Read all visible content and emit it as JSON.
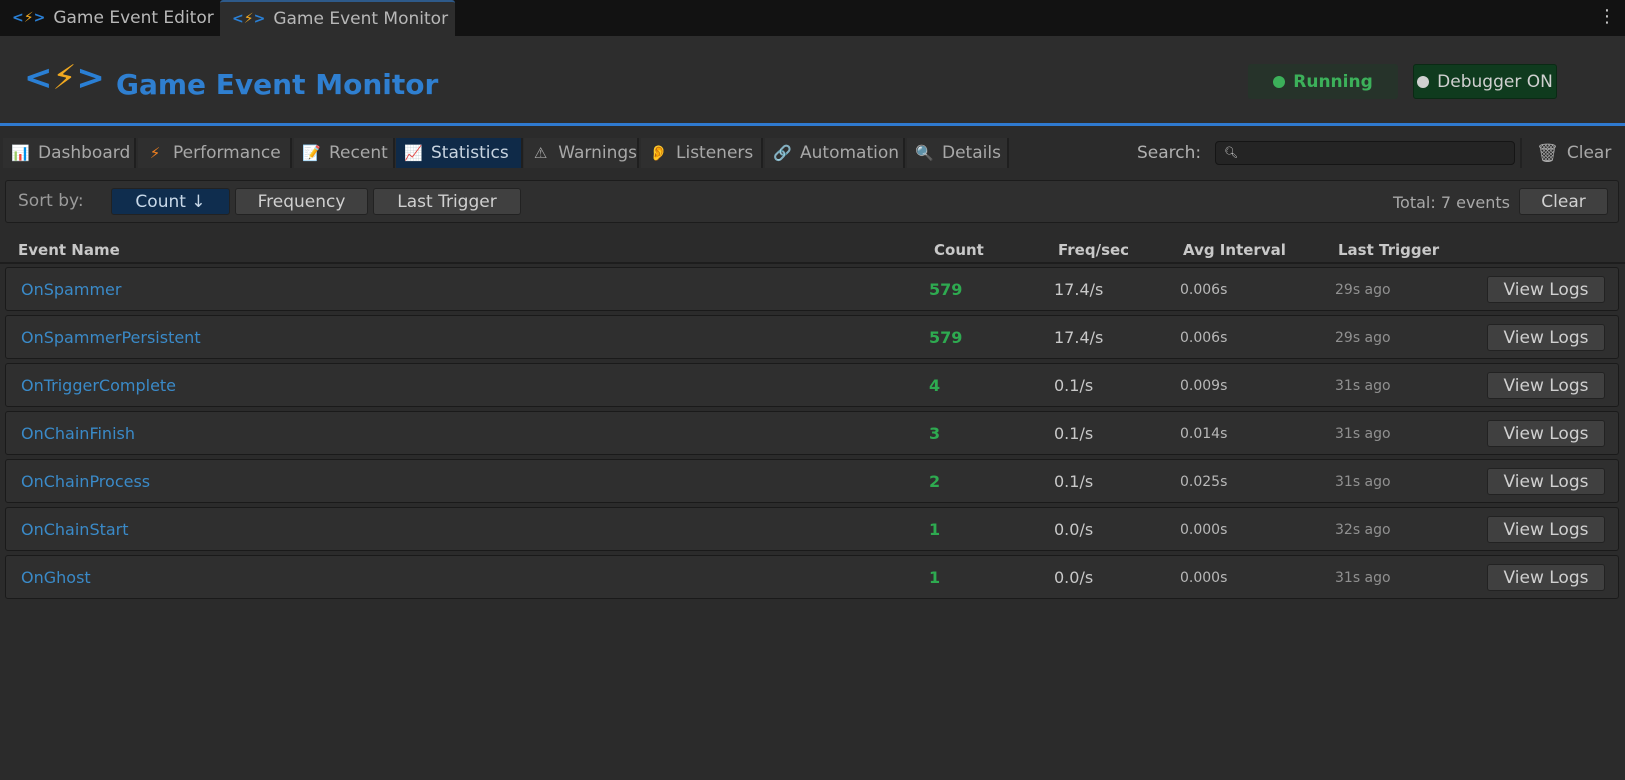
{
  "window_tabs": [
    {
      "label": "Game Event Editor",
      "active": false
    },
    {
      "label": "Game Event Monitor",
      "active": true
    }
  ],
  "header": {
    "title": "Game Event Monitor",
    "status": {
      "label": "Running",
      "color": "#3cb05a"
    },
    "debugger": {
      "label": "Debugger ON"
    }
  },
  "tabs": [
    {
      "label": "Dashboard",
      "icon": "bar-chart-icon"
    },
    {
      "label": "Performance",
      "icon": "lightning-icon"
    },
    {
      "label": "Recent",
      "icon": "memo-icon"
    },
    {
      "label": "Statistics",
      "icon": "chart-increasing-icon",
      "active": true
    },
    {
      "label": "Warnings",
      "icon": "warning-icon"
    },
    {
      "label": "Listeners",
      "icon": "ear-icon"
    },
    {
      "label": "Automation",
      "icon": "link-icon"
    },
    {
      "label": "Details",
      "icon": "magnifier-icon"
    }
  ],
  "search": {
    "label": "Search:",
    "value": ""
  },
  "clear_label": "Clear",
  "sort": {
    "label": "Sort by:",
    "options": [
      "Count ↓",
      "Frequency",
      "Last Trigger"
    ],
    "active": "Count ↓"
  },
  "total": "Total: 7 events",
  "clear_button": "Clear",
  "columns": [
    "Event Name",
    "Count",
    "Freq/sec",
    "Avg Interval",
    "Last Trigger"
  ],
  "rows": [
    {
      "name": "OnSpammer",
      "count": "579",
      "freq": "17.4/s",
      "avg": "0.006s",
      "last": "29s ago",
      "action": "View Logs"
    },
    {
      "name": "OnSpammerPersistent",
      "count": "579",
      "freq": "17.4/s",
      "avg": "0.006s",
      "last": "29s ago",
      "action": "View Logs"
    },
    {
      "name": "OnTriggerComplete",
      "count": "4",
      "freq": "0.1/s",
      "avg": "0.009s",
      "last": "31s ago",
      "action": "View Logs"
    },
    {
      "name": "OnChainFinish",
      "count": "3",
      "freq": "0.1/s",
      "avg": "0.014s",
      "last": "31s ago",
      "action": "View Logs"
    },
    {
      "name": "OnChainProcess",
      "count": "2",
      "freq": "0.1/s",
      "avg": "0.025s",
      "last": "31s ago",
      "action": "View Logs"
    },
    {
      "name": "OnChainStart",
      "count": "1",
      "freq": "0.0/s",
      "avg": "0.000s",
      "last": "32s ago",
      "action": "View Logs"
    },
    {
      "name": "OnGhost",
      "count": "1",
      "freq": "0.0/s",
      "avg": "0.000s",
      "last": "31s ago",
      "action": "View Logs"
    }
  ]
}
